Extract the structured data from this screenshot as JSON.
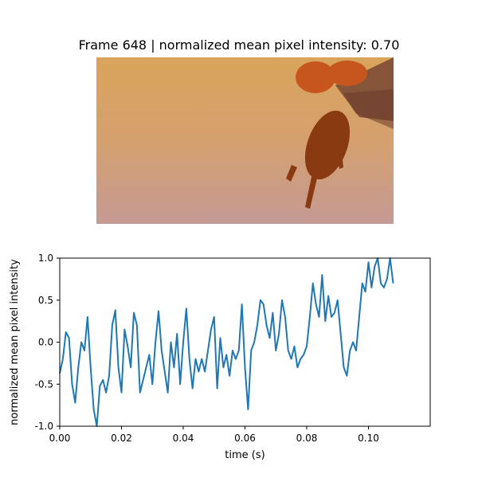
{
  "figure": {
    "title": "Frame 648 | normalized mean pixel intensity: 0.70"
  },
  "image": {
    "subject": "beetle-in-flight",
    "colors": {
      "bg_top": "#d9a45a",
      "bg_mid": "#d5a06f",
      "bg_bottom": "#c49a94",
      "body": "#8a3a10",
      "shell": "#c6561e",
      "wing": "#6b3a2c"
    }
  },
  "chart_data": {
    "type": "line",
    "xlabel": "time (s)",
    "ylabel": "normalized mean pixel intensity",
    "xlim": [
      0,
      0.12
    ],
    "ylim": [
      -1.0,
      1.0
    ],
    "xticks": [
      "0.00",
      "0.02",
      "0.04",
      "0.06",
      "0.08",
      "0.10"
    ],
    "yticks": [
      "-1.0",
      "-0.5",
      "0.0",
      "0.5",
      "1.0"
    ],
    "grid": false,
    "line_color": "#1f77b4",
    "series": [
      {
        "x": [
          0.0,
          0.001,
          0.002,
          0.003,
          0.004,
          0.005,
          0.006,
          0.007,
          0.008,
          0.009,
          0.01,
          0.011,
          0.012,
          0.013,
          0.014,
          0.015,
          0.016,
          0.017,
          0.018,
          0.019,
          0.02,
          0.021,
          0.022,
          0.023,
          0.024,
          0.025,
          0.026,
          0.027,
          0.028,
          0.029,
          0.03,
          0.031,
          0.032,
          0.033,
          0.034,
          0.035,
          0.036,
          0.037,
          0.038,
          0.039,
          0.04,
          0.041,
          0.042,
          0.043,
          0.044,
          0.045,
          0.046,
          0.047,
          0.048,
          0.049,
          0.05,
          0.051,
          0.052,
          0.053,
          0.054,
          0.055,
          0.056,
          0.057,
          0.058,
          0.059,
          0.06,
          0.061,
          0.062,
          0.063,
          0.064,
          0.065,
          0.066,
          0.067,
          0.068,
          0.069,
          0.07,
          0.071,
          0.072,
          0.073,
          0.074,
          0.075,
          0.076,
          0.077,
          0.078,
          0.079,
          0.08,
          0.081,
          0.082,
          0.083,
          0.084,
          0.085,
          0.086,
          0.087,
          0.088,
          0.089,
          0.09,
          0.091,
          0.092,
          0.093,
          0.094,
          0.095,
          0.096,
          0.097,
          0.098,
          0.099,
          0.1,
          0.101,
          0.102,
          0.103,
          0.104,
          0.105,
          0.106,
          0.107,
          0.108
        ],
        "y": [
          -0.37,
          -0.2,
          0.12,
          0.05,
          -0.5,
          -0.72,
          -0.3,
          0.0,
          -0.1,
          0.3,
          -0.3,
          -0.8,
          -1.0,
          -0.52,
          -0.45,
          -0.6,
          -0.4,
          0.2,
          0.38,
          -0.3,
          -0.6,
          0.15,
          -0.05,
          -0.3,
          0.35,
          0.2,
          -0.6,
          -0.45,
          -0.3,
          -0.15,
          -0.5,
          0.0,
          0.37,
          -0.1,
          -0.35,
          -0.6,
          0.0,
          -0.3,
          0.1,
          -0.5,
          0.0,
          0.4,
          -0.2,
          -0.55,
          -0.2,
          -0.35,
          -0.2,
          -0.35,
          -0.1,
          0.15,
          0.3,
          -0.55,
          0.05,
          -0.3,
          -0.15,
          -0.4,
          -0.1,
          -0.2,
          -0.1,
          0.45,
          -0.3,
          -0.8,
          -0.1,
          0.0,
          0.2,
          0.5,
          0.45,
          0.2,
          0.05,
          0.35,
          -0.1,
          0.1,
          0.5,
          0.3,
          -0.1,
          -0.2,
          -0.05,
          -0.3,
          -0.2,
          -0.15,
          -0.05,
          0.3,
          0.7,
          0.45,
          0.3,
          0.8,
          0.25,
          0.55,
          0.3,
          0.35,
          0.5,
          0.1,
          -0.3,
          -0.4,
          -0.1,
          0.0,
          -0.1,
          0.3,
          0.7,
          0.6,
          0.95,
          0.65,
          0.9,
          1.0,
          0.7,
          0.65,
          0.75,
          1.0,
          0.7
        ]
      }
    ]
  }
}
